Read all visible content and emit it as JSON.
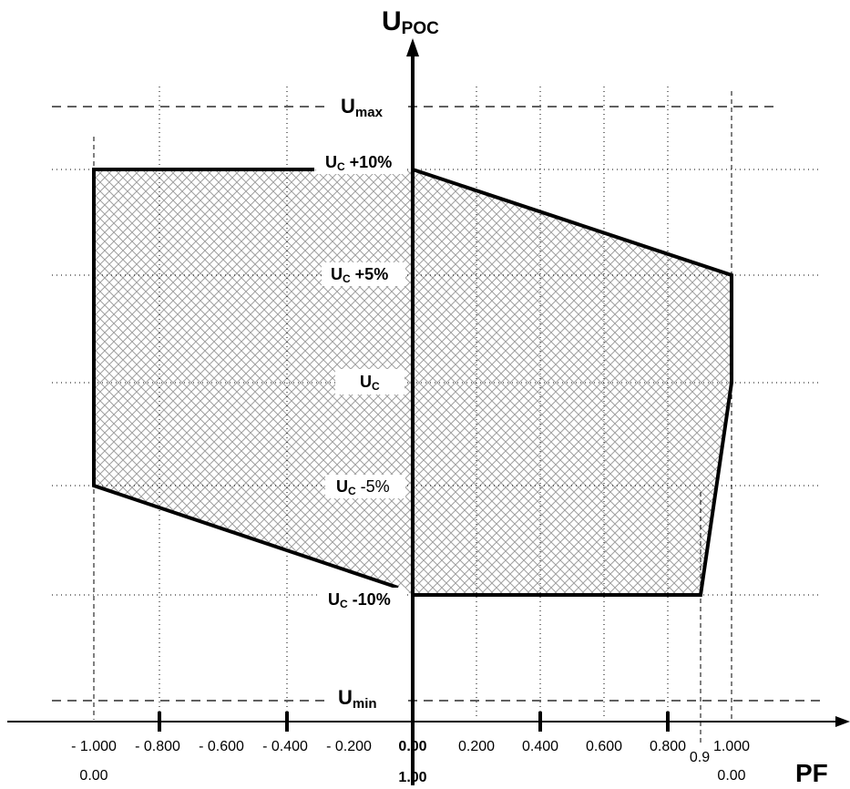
{
  "axes": {
    "y_title_main": "U",
    "y_title_sub": "POC",
    "x_title": "PF"
  },
  "levels": {
    "umax_main": "U",
    "umax_sub": "max",
    "umin_main": "U",
    "umin_sub": "min",
    "uc_p10_main": "U",
    "uc_p10_sub": "C",
    "uc_p10_suffix": " +10%",
    "uc_p5_main": "U",
    "uc_p5_sub": "C",
    "uc_p5_suffix": " +5%",
    "uc_main": "U",
    "uc_sub": "C",
    "uc_m5_main": "U",
    "uc_m5_sub": "C",
    "uc_m5_suffix": " -5%",
    "uc_m10_main": "U",
    "uc_m10_sub": "C",
    "uc_m10_suffix": " -10%"
  },
  "x_ticks_top": [
    "- 1.000",
    "- 0.800",
    "- 0.600",
    "- 0.400",
    "- 0.200",
    "0.00",
    "0.200",
    "0.400",
    "0.600",
    "0.800",
    "1.000"
  ],
  "x_ticks_bottom": [
    "0.00",
    "1.00",
    "0.9",
    "0.00"
  ],
  "colors": {
    "line": "#000000",
    "hatch": "#9a9a9a",
    "background": "#ffffff"
  }
}
